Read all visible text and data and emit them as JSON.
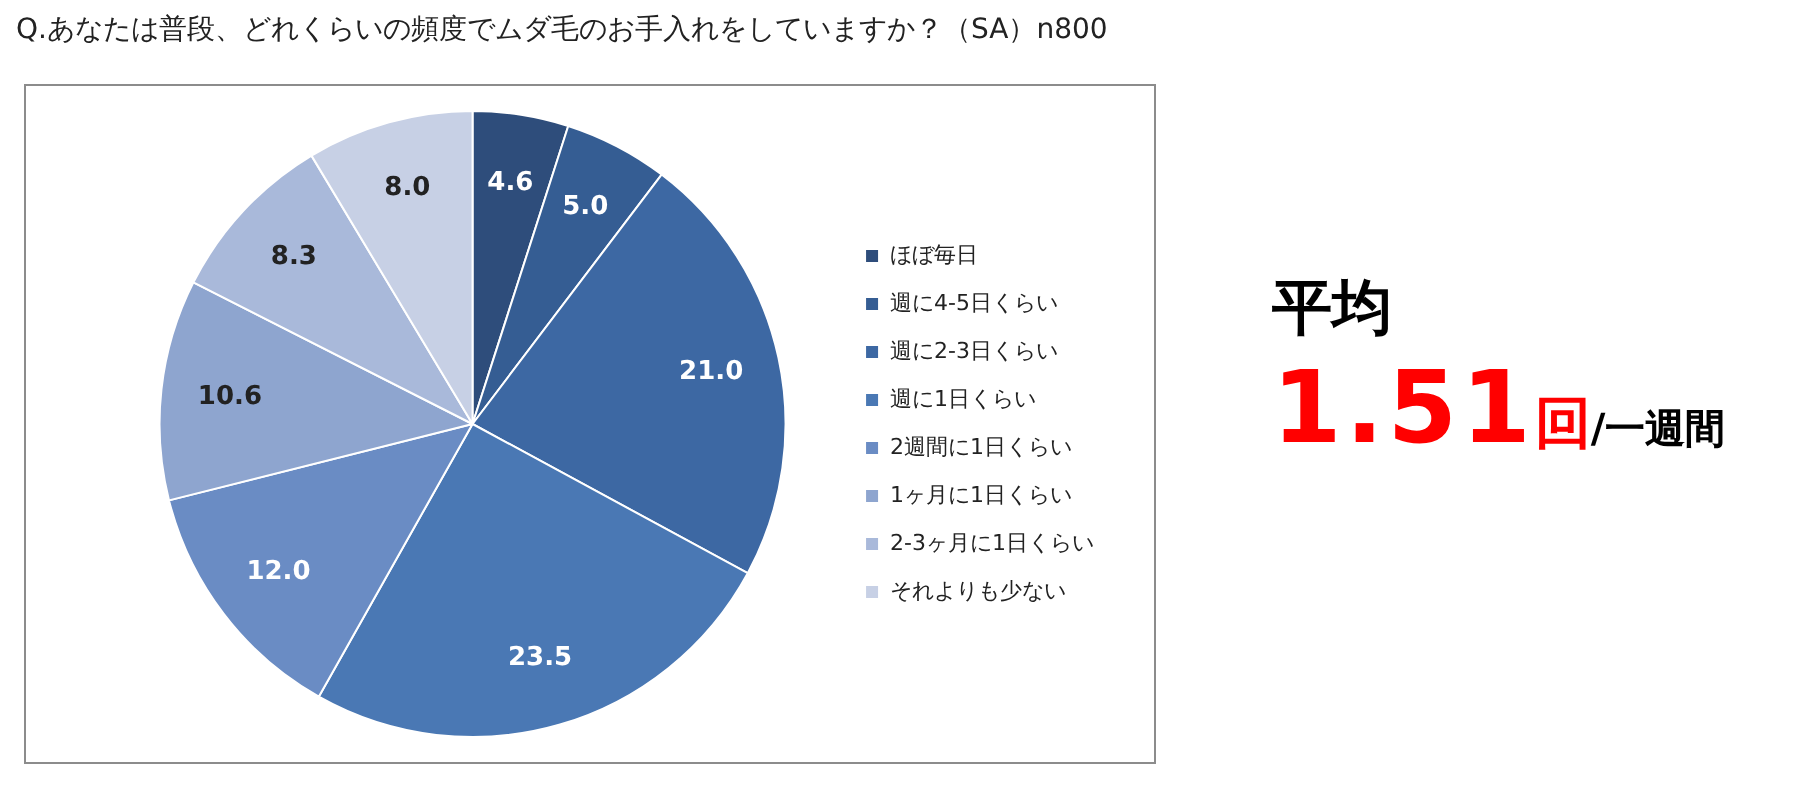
{
  "chart_data": {
    "type": "pie",
    "title": "Q.あなたは普段、どれくらいの頻度でムダ毛のお手入れをしていますか？（SA）n800",
    "categories": [
      "ほぼ毎日",
      "週に4-5日くらい",
      "週に2-3日くらい",
      "週に1日くらい",
      "2週間に1日くらい",
      "1ヶ月に1日くらい",
      "2-3ヶ月に1日くらい",
      "それよりも少ない"
    ],
    "values": [
      4.6,
      5.0,
      21.0,
      23.5,
      12.0,
      10.6,
      8.3,
      8.0
    ],
    "colors": [
      "#2e4d7b",
      "#355d93",
      "#3d68a3",
      "#4a78b4",
      "#6a8cc4",
      "#8ea5cf",
      "#a9b9da",
      "#c7d0e5"
    ],
    "value_labels": [
      "4.6",
      "5.0",
      "21.0",
      "23.5",
      "12.0",
      "10.6",
      "8.3",
      "8.0"
    ],
    "legend": "right",
    "annotations": [
      "平均",
      "1.51",
      "回",
      "/一週間"
    ]
  }
}
